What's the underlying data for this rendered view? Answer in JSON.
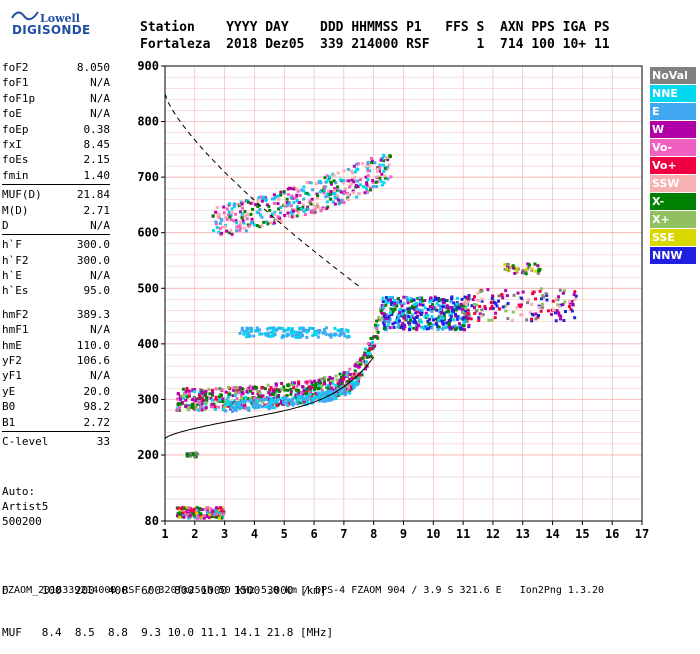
{
  "logo": {
    "top": "Lowell",
    "bottom": "DIGISONDE"
  },
  "header": {
    "labels": "Station    YYYY DAY    DDD HHMMSS P1   FFS S  AXN PPS IGA PS",
    "values": "Fortaleza  2018 Dez05  339 214000 RSF      1  714 100 10+ 11"
  },
  "params": {
    "group1": [
      {
        "name": "foF2",
        "value": "8.050"
      },
      {
        "name": "foF1",
        "value": "N/A"
      },
      {
        "name": "foF1p",
        "value": "N/A"
      },
      {
        "name": "foE",
        "value": "N/A"
      },
      {
        "name": "foEp",
        "value": "0.38"
      },
      {
        "name": "fxI",
        "value": "8.45"
      },
      {
        "name": "foEs",
        "value": "2.15"
      },
      {
        "name": "fmin",
        "value": "1.40"
      }
    ],
    "group2": [
      {
        "name": "MUF(D)",
        "value": "21.84"
      },
      {
        "name": "M(D)",
        "value": "2.71"
      },
      {
        "name": "D",
        "value": "N/A"
      }
    ],
    "group3": [
      {
        "name": "h`F",
        "value": "300.0"
      },
      {
        "name": "h`F2",
        "value": "300.0"
      },
      {
        "name": "h`E",
        "value": "N/A"
      },
      {
        "name": "h`Es",
        "value": "95.0"
      }
    ],
    "group4": [
      {
        "name": "hmF2",
        "value": "389.3"
      },
      {
        "name": "hmF1",
        "value": "N/A"
      },
      {
        "name": "hmE",
        "value": "110.0"
      },
      {
        "name": "yF2",
        "value": "106.6"
      },
      {
        "name": "yF1",
        "value": "N/A"
      },
      {
        "name": "yE",
        "value": "20.0"
      },
      {
        "name": "B0",
        "value": "98.2"
      },
      {
        "name": "B1",
        "value": "2.72"
      }
    ],
    "group5": [
      {
        "name": "C-level",
        "value": "33"
      }
    ]
  },
  "auto": {
    "line1": "Auto:",
    "line2": "Artist5",
    "line3": "500200"
  },
  "legend": [
    {
      "label": "NoVal",
      "color": "#808080"
    },
    {
      "label": "NNE",
      "color": "#00d8f0"
    },
    {
      "label": "E",
      "color": "#40a8f0"
    },
    {
      "label": "W",
      "color": "#b000a8"
    },
    {
      "label": "Vo-",
      "color": "#f060c0"
    },
    {
      "label": "Vo+",
      "color": "#f00040"
    },
    {
      "label": "SSW",
      "color": "#f8b0b0"
    },
    {
      "label": "X-",
      "color": "#008000"
    },
    {
      "label": "X+",
      "color": "#90c060"
    },
    {
      "label": "SSE",
      "color": "#d8d800"
    },
    {
      "label": "NNW",
      "color": "#2020e0"
    }
  ],
  "chart_data": {
    "type": "scatter",
    "x_ticks": [
      "1",
      "2",
      "3",
      "4",
      "5",
      "6",
      "7",
      "8",
      "9",
      "10",
      "11",
      "12",
      "13",
      "14",
      "15",
      "16",
      "17"
    ],
    "y_ticks": [
      "80",
      "200",
      "300",
      "400",
      "500",
      "600",
      "700",
      "800",
      "900"
    ],
    "xlim": [
      1,
      17
    ],
    "ylim": [
      80,
      900
    ],
    "grid": true
  },
  "muf_table": {
    "d_line": "D     100  200  400  600  800 1000 1500 3000 [km]",
    "muf_line": "MUF   8.4  8.5  8.8  9.3 10.0 11.1 14.1 21.8 [MHz]"
  },
  "footer": "FZAOM_2018339214000.RSF / 320fx256h 50 kHz 5.0 km / DPS-4 FZAOM 904 / 3.9 S 321.6 E   Ion2Png 1.3.20"
}
